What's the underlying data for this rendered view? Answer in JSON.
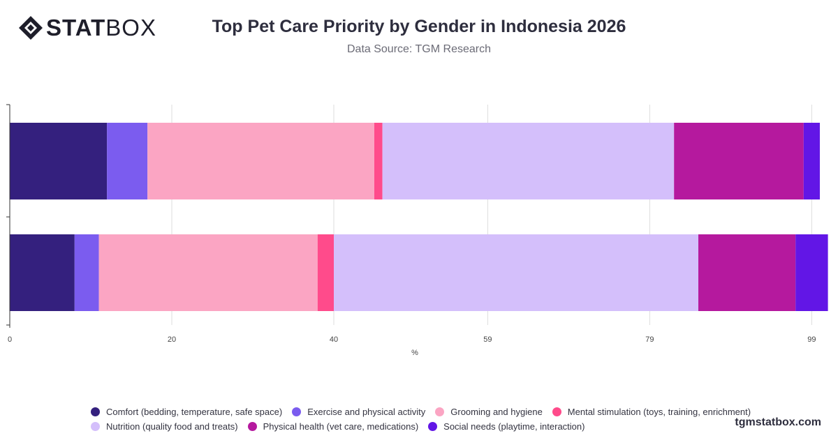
{
  "header": {
    "logo_bold": "STAT",
    "logo_light": "BOX",
    "title": "Top Pet Care Priority by Gender in Indonesia 2026",
    "subtitle": "Data Source: TGM Research"
  },
  "footer": {
    "watermark": "tgmstatbox.com"
  },
  "chart_data": {
    "type": "bar",
    "orientation": "horizontal",
    "stacked": true,
    "title": "Top Pet Care Priority by Gender in Indonesia 2026",
    "subtitle": "Data Source: TGM Research",
    "xlabel": "%",
    "ylabel": "",
    "xlim": [
      0,
      100
    ],
    "x_ticks": [
      0,
      20,
      40,
      59,
      79,
      99
    ],
    "grid": true,
    "legend_position": "bottom",
    "categories": [
      "",
      ""
    ],
    "series": [
      {
        "name": "Comfort (bedding, temperature, safe space)",
        "color": "#34207e",
        "values": [
          12,
          8
        ]
      },
      {
        "name": "Exercise and physical activity",
        "color": "#7b5cef",
        "values": [
          5,
          3
        ]
      },
      {
        "name": "Grooming and hygiene",
        "color": "#fba5c3",
        "values": [
          28,
          27
        ]
      },
      {
        "name": "Mental stimulation (toys, training, enrichment)",
        "color": "#ff4b8b",
        "values": [
          1,
          2
        ]
      },
      {
        "name": "Nutrition (quality food and treats)",
        "color": "#d4bffb",
        "values": [
          36,
          45
        ]
      },
      {
        "name": "Physical health (vet care, medications)",
        "color": "#b5199e",
        "values": [
          16,
          12
        ]
      },
      {
        "name": "Social needs (playtime, interaction)",
        "color": "#6216e6",
        "values": [
          2,
          4
        ]
      }
    ]
  }
}
